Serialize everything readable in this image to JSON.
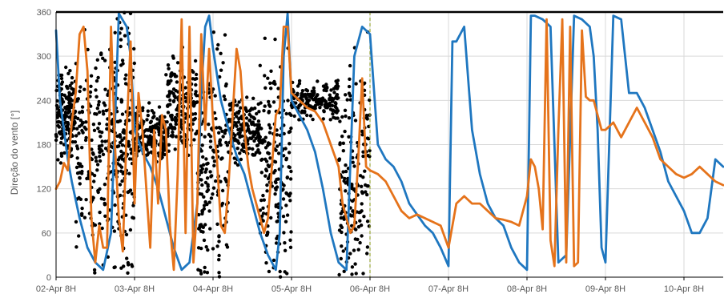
{
  "chart_data": {
    "type": "line",
    "title": "",
    "ylabel": "Direção do vento [°]",
    "xlabel": "",
    "ylim": [
      0,
      360
    ],
    "yticks": [
      0,
      60,
      120,
      180,
      240,
      300,
      360
    ],
    "xlim": [
      0,
      8.5
    ],
    "x_unit": "days after 02-Apr 8H",
    "xticks": [
      {
        "x": 0,
        "label": "02-Apr 8H"
      },
      {
        "x": 1,
        "label": "03-Apr 8H"
      },
      {
        "x": 2,
        "label": "04-Apr 8H"
      },
      {
        "x": 3,
        "label": "05-Apr 8H"
      },
      {
        "x": 4,
        "label": "06-Apr 8H"
      },
      {
        "x": 5,
        "label": "07-Apr 8H"
      },
      {
        "x": 6,
        "label": "08-Apr 8H"
      },
      {
        "x": 7,
        "label": "09-Apr 8H"
      },
      {
        "x": 8,
        "label": "10-Apr 8H"
      }
    ],
    "grid": "horizontal and vertical",
    "legend": "none",
    "forecast_start_x": 4.0,
    "colors": {
      "observed": "#000000",
      "series1": "#1f77c0",
      "series2": "#e5731b",
      "marker": "#9aa83a"
    },
    "observed_clusters": [
      {
        "x0": 0.0,
        "x1": 0.25,
        "mean": 220,
        "spread": 60
      },
      {
        "x0": 0.25,
        "x1": 0.7,
        "mean": 180,
        "spread": 150
      },
      {
        "x0": 0.7,
        "x1": 1.0,
        "mean": 180,
        "spread": 170
      },
      {
        "x0": 1.0,
        "x1": 1.4,
        "mean": 190,
        "spread": 40
      },
      {
        "x0": 1.4,
        "x1": 1.8,
        "mean": 230,
        "spread": 70
      },
      {
        "x0": 1.8,
        "x1": 2.2,
        "mean": 150,
        "spread": 160
      },
      {
        "x0": 2.2,
        "x1": 2.6,
        "mean": 200,
        "spread": 50
      },
      {
        "x0": 2.6,
        "x1": 3.0,
        "mean": 150,
        "spread": 160
      },
      {
        "x0": 3.0,
        "x1": 3.6,
        "mean": 240,
        "spread": 25
      },
      {
        "x0": 3.6,
        "x1": 4.0,
        "mean": 150,
        "spread": 160
      }
    ],
    "series": [
      {
        "x": [
          0,
          0.05,
          0.1,
          0.15,
          0.2,
          0.3,
          0.4,
          0.5,
          0.6,
          0.7,
          0.8,
          0.9,
          0.95,
          1.0,
          1.05,
          1.1,
          1.2,
          1.3,
          1.4,
          1.5,
          1.6,
          1.7,
          1.8,
          1.85,
          1.9,
          1.95,
          2.0,
          2.1,
          2.2,
          2.3,
          2.4,
          2.5,
          2.6,
          2.7,
          2.8,
          2.85,
          2.9,
          2.95,
          3.0,
          3.1,
          3.2,
          3.3,
          3.4,
          3.5,
          3.6,
          3.7,
          3.8,
          3.9,
          4.0,
          4.1,
          4.2,
          4.3,
          4.4,
          4.5,
          4.6,
          4.7,
          4.8,
          4.9,
          5.0,
          5.05,
          5.1,
          5.15,
          5.2,
          5.3,
          5.4,
          5.5,
          5.6,
          5.7,
          5.8,
          5.9,
          6.0,
          6.05,
          6.1,
          6.2,
          6.3,
          6.4,
          6.5,
          6.6,
          6.7,
          6.8,
          6.85,
          6.9,
          6.95,
          7.0,
          7.1,
          7.2,
          7.3,
          7.4,
          7.5,
          7.6,
          7.7,
          7.8,
          7.9,
          8.0,
          8.1,
          8.2,
          8.3,
          8.4,
          8.5
        ],
        "values": [
          335,
          240,
          200,
          160,
          130,
          80,
          40,
          20,
          10,
          60,
          358,
          340,
          300,
          200,
          185,
          170,
          150,
          120,
          80,
          40,
          10,
          20,
          100,
          250,
          340,
          355,
          310,
          240,
          200,
          165,
          140,
          100,
          60,
          30,
          10,
          60,
          300,
          358,
          240,
          220,
          200,
          170,
          120,
          60,
          20,
          10,
          300,
          340,
          330,
          180,
          160,
          150,
          130,
          100,
          85,
          70,
          60,
          40,
          15,
          320,
          320,
          330,
          340,
          200,
          140,
          100,
          80,
          70,
          40,
          20,
          10,
          355,
          355,
          350,
          340,
          20,
          30,
          355,
          350,
          340,
          300,
          200,
          40,
          20,
          355,
          350,
          250,
          250,
          230,
          200,
          170,
          130,
          110,
          90,
          60,
          60,
          80,
          160,
          150
        ]
      },
      {
        "x": [
          0,
          0.05,
          0.1,
          0.15,
          0.2,
          0.25,
          0.3,
          0.35,
          0.4,
          0.45,
          0.5,
          0.55,
          0.6,
          0.65,
          0.7,
          0.75,
          0.8,
          0.85,
          0.9,
          0.95,
          1.0,
          1.05,
          1.1,
          1.15,
          1.2,
          1.25,
          1.3,
          1.35,
          1.4,
          1.45,
          1.5,
          1.55,
          1.6,
          1.65,
          1.7,
          1.75,
          1.8,
          1.85,
          1.9,
          1.95,
          2.0,
          2.05,
          2.1,
          2.15,
          2.2,
          2.25,
          2.3,
          2.35,
          2.4,
          2.45,
          2.5,
          2.55,
          2.6,
          2.65,
          2.7,
          2.75,
          2.8,
          2.85,
          2.9,
          2.95,
          3.0,
          3.1,
          3.2,
          3.3,
          3.4,
          3.5,
          3.6,
          3.65,
          3.7,
          3.75,
          3.8,
          3.85,
          3.9,
          3.95,
          4.0,
          4.1,
          4.2,
          4.3,
          4.4,
          4.5,
          4.6,
          4.7,
          4.8,
          4.9,
          5.0,
          5.1,
          5.2,
          5.3,
          5.4,
          5.5,
          5.6,
          5.7,
          5.8,
          5.9,
          6.0,
          6.05,
          6.1,
          6.15,
          6.2,
          6.25,
          6.3,
          6.35,
          6.4,
          6.45,
          6.5,
          6.55,
          6.6,
          6.65,
          6.7,
          6.75,
          6.8,
          6.85,
          6.9,
          6.95,
          7.0,
          7.1,
          7.2,
          7.3,
          7.4,
          7.5,
          7.6,
          7.7,
          7.8,
          7.9,
          8.0,
          8.1,
          8.2,
          8.3,
          8.4,
          8.5
        ],
        "values": [
          120,
          130,
          155,
          145,
          210,
          250,
          330,
          340,
          280,
          80,
          20,
          70,
          40,
          40,
          340,
          180,
          80,
          35,
          200,
          320,
          100,
          250,
          200,
          120,
          40,
          200,
          100,
          220,
          200,
          70,
          10,
          140,
          350,
          60,
          340,
          20,
          100,
          330,
          200,
          310,
          210,
          160,
          70,
          60,
          130,
          220,
          310,
          280,
          200,
          150,
          120,
          100,
          80,
          60,
          80,
          150,
          220,
          230,
          340,
          340,
          250,
          240,
          230,
          225,
          210,
          180,
          150,
          100,
          80,
          60,
          70,
          160,
          270,
          150,
          145,
          140,
          130,
          110,
          90,
          80,
          85,
          80,
          75,
          70,
          40,
          100,
          110,
          100,
          100,
          90,
          80,
          78,
          75,
          70,
          110,
          160,
          150,
          120,
          65,
          350,
          50,
          15,
          200,
          350,
          20,
          340,
          15,
          20,
          335,
          245,
          240,
          240,
          220,
          200,
          200,
          210,
          190,
          210,
          230,
          210,
          190,
          160,
          150,
          140,
          135,
          140,
          150,
          140,
          130,
          125
        ]
      }
    ]
  }
}
